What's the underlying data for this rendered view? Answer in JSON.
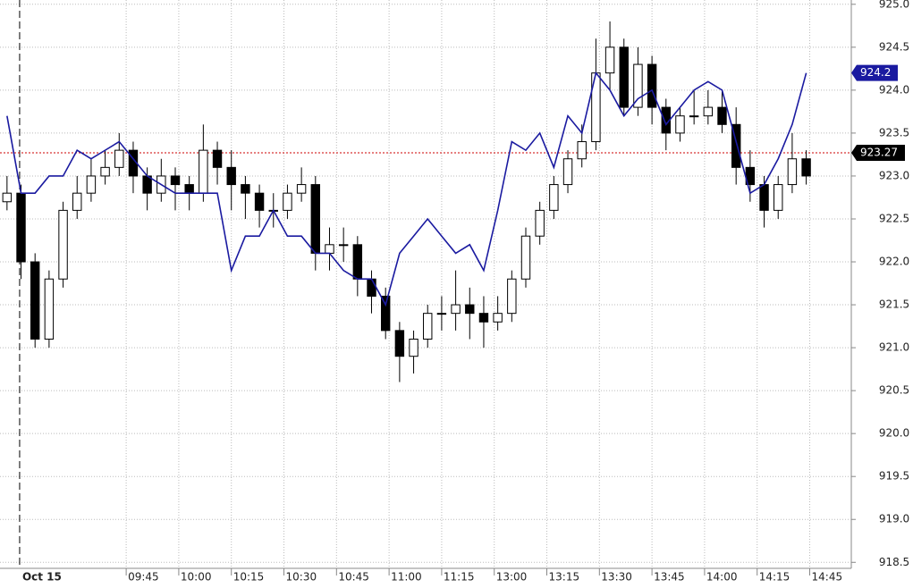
{
  "chart_data": {
    "type": "candlestick",
    "x": [
      2,
      6,
      10,
      14,
      18,
      22,
      26,
      30,
      34,
      38,
      42,
      46,
      50,
      54,
      58,
      62,
      66,
      70,
      74,
      78,
      82,
      86,
      90,
      94,
      98,
      102,
      106,
      110,
      114,
      118,
      122,
      126,
      130,
      134,
      138,
      142,
      146,
      150,
      154,
      158,
      162,
      166,
      170,
      174,
      178,
      182,
      186,
      190,
      194,
      198,
      202,
      206,
      210,
      214,
      218,
      222,
      226,
      230
    ],
    "ohlc": [
      [
        922.7,
        923.0,
        922.6,
        922.8
      ],
      [
        922.8,
        922.9,
        921.8,
        922.0
      ],
      [
        922.0,
        922.1,
        921.0,
        921.1
      ],
      [
        921.1,
        921.9,
        921.0,
        921.8
      ],
      [
        921.8,
        922.7,
        921.7,
        922.6
      ],
      [
        922.6,
        923.0,
        922.5,
        922.8
      ],
      [
        922.8,
        923.2,
        922.7,
        923.0
      ],
      [
        923.0,
        923.3,
        922.9,
        923.1
      ],
      [
        923.1,
        923.5,
        923.0,
        923.3
      ],
      [
        923.3,
        923.4,
        922.8,
        923.0
      ],
      [
        923.0,
        923.1,
        922.6,
        922.8
      ],
      [
        922.8,
        923.2,
        922.7,
        923.0
      ],
      [
        923.0,
        923.1,
        922.6,
        922.9
      ],
      [
        922.9,
        923.0,
        922.6,
        922.8
      ],
      [
        922.8,
        923.6,
        922.7,
        923.3
      ],
      [
        923.3,
        923.4,
        922.9,
        923.1
      ],
      [
        923.1,
        923.3,
        922.6,
        922.9
      ],
      [
        922.9,
        923.0,
        922.5,
        922.8
      ],
      [
        922.8,
        922.9,
        922.4,
        922.6
      ],
      [
        922.6,
        922.8,
        922.4,
        922.6
      ],
      [
        922.6,
        922.9,
        922.5,
        922.8
      ],
      [
        922.8,
        923.1,
        922.7,
        922.9
      ],
      [
        922.9,
        923.0,
        921.9,
        922.1
      ],
      [
        922.1,
        922.4,
        921.9,
        922.2
      ],
      [
        922.2,
        922.4,
        922.0,
        922.2
      ],
      [
        922.2,
        922.3,
        921.6,
        921.8
      ],
      [
        921.8,
        921.9,
        921.4,
        921.6
      ],
      [
        921.6,
        921.7,
        921.1,
        921.2
      ],
      [
        921.2,
        921.3,
        920.6,
        920.9
      ],
      [
        920.9,
        921.2,
        920.7,
        921.1
      ],
      [
        921.1,
        921.5,
        921.0,
        921.4
      ],
      [
        921.4,
        921.6,
        921.2,
        921.4
      ],
      [
        921.4,
        921.9,
        921.2,
        921.5
      ],
      [
        921.5,
        921.7,
        921.1,
        921.4
      ],
      [
        921.4,
        921.6,
        921.0,
        921.3
      ],
      [
        921.3,
        921.6,
        921.2,
        921.4
      ],
      [
        921.4,
        921.9,
        921.3,
        921.8
      ],
      [
        921.8,
        922.4,
        921.7,
        922.3
      ],
      [
        922.3,
        922.7,
        922.2,
        922.6
      ],
      [
        922.6,
        923.0,
        922.5,
        922.9
      ],
      [
        922.9,
        923.3,
        922.8,
        923.2
      ],
      [
        923.2,
        923.6,
        923.1,
        923.4
      ],
      [
        923.4,
        924.6,
        923.3,
        924.2
      ],
      [
        924.2,
        924.8,
        924.0,
        924.5
      ],
      [
        924.5,
        924.6,
        923.7,
        923.8
      ],
      [
        923.8,
        924.5,
        923.7,
        924.3
      ],
      [
        924.3,
        924.4,
        923.6,
        923.8
      ],
      [
        923.8,
        923.9,
        923.3,
        923.5
      ],
      [
        923.5,
        923.8,
        923.4,
        923.7
      ],
      [
        923.7,
        924.0,
        923.6,
        923.7
      ],
      [
        923.7,
        924.0,
        923.6,
        923.8
      ],
      [
        923.8,
        924.0,
        923.5,
        923.6
      ],
      [
        923.6,
        923.8,
        922.9,
        923.1
      ],
      [
        923.1,
        923.3,
        922.7,
        922.9
      ],
      [
        922.9,
        923.0,
        922.4,
        922.6
      ],
      [
        922.6,
        923.0,
        922.5,
        922.9
      ],
      [
        922.9,
        923.5,
        922.8,
        923.2
      ],
      [
        923.2,
        923.3,
        922.9,
        923.0
      ]
    ],
    "up_color": "#ffffff",
    "down_color": "#000000",
    "line": {
      "color": "#1a1aa0",
      "values": [
        923.7,
        922.8,
        922.8,
        923.0,
        923.0,
        923.3,
        923.2,
        923.3,
        923.4,
        923.2,
        923.0,
        922.9,
        922.8,
        922.8,
        922.8,
        922.8,
        921.9,
        922.3,
        922.3,
        922.6,
        922.3,
        922.3,
        922.1,
        922.1,
        921.9,
        921.8,
        921.8,
        921.5,
        922.1,
        922.3,
        922.5,
        922.3,
        922.1,
        922.2,
        921.9,
        922.6,
        923.4,
        923.3,
        923.5,
        923.1,
        923.7,
        923.5,
        924.2,
        924.0,
        923.7,
        923.9,
        924.0,
        923.6,
        923.8,
        924.0,
        924.1,
        924.0,
        923.4,
        922.8,
        922.9,
        923.2,
        923.6,
        924.2
      ]
    },
    "line_last": 924.2,
    "price_line": 923.27,
    "price_line_color": "#cc0000",
    "session_label": {
      "value": 5.6,
      "label": "Oct 15"
    },
    "xlim": [
      0,
      242.35
    ],
    "xticks": [
      {
        "value": 36,
        "label": "09:45"
      },
      {
        "value": 51,
        "label": "10:00"
      },
      {
        "value": 66,
        "label": "10:15"
      },
      {
        "value": 81,
        "label": "10:30"
      },
      {
        "value": 96,
        "label": "10:45"
      },
      {
        "value": 111,
        "label": "11:00"
      },
      {
        "value": 126,
        "label": "11:15"
      },
      {
        "value": 141,
        "label": "13:00"
      },
      {
        "value": 156,
        "label": "13:15"
      },
      {
        "value": 171,
        "label": "13:30"
      },
      {
        "value": 186,
        "label": "13:45"
      },
      {
        "value": 201,
        "label": "14:00"
      },
      {
        "value": 216,
        "label": "14:15"
      },
      {
        "value": 231,
        "label": "14:45"
      }
    ],
    "ylim": [
      918.43,
      925.05
    ],
    "yticks": [
      918.5,
      {
        "value": 919,
        "label": "919.0"
      },
      919.5,
      {
        "value": 920,
        "label": "920.0"
      },
      920.5,
      {
        "value": 921,
        "label": "921.0"
      },
      921.5,
      {
        "value": 922,
        "label": "922.0"
      },
      922.5,
      {
        "value": 923,
        "label": "923.0"
      },
      923.5,
      {
        "value": 924,
        "label": "924.0"
      },
      924.5,
      {
        "value": 925,
        "label": "925.0"
      }
    ],
    "grid": true
  }
}
